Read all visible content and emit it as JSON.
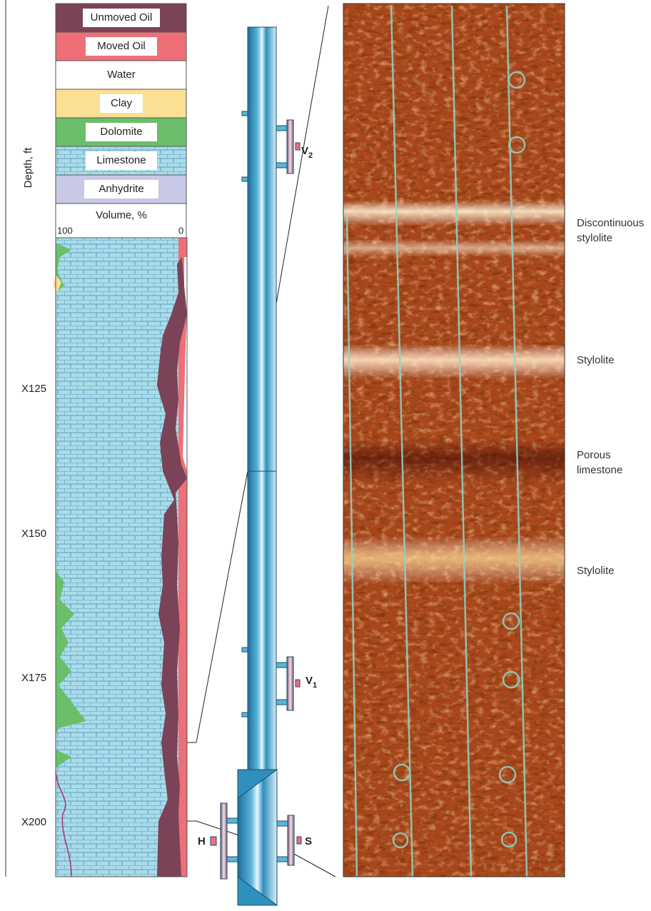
{
  "log": {
    "legend": [
      "Unmoved Oil",
      "Moved Oil",
      "Water",
      "Clay",
      "Dolomite",
      "Limestone",
      "Anhydrite"
    ],
    "volume_label": "Volume, %",
    "volume_left": "100",
    "volume_right": "0",
    "depth_label": "Depth, ft",
    "depths": [
      "X125",
      "X150",
      "X175",
      "X200"
    ]
  },
  "tool": {
    "labels": [
      {
        "letter": "V",
        "sub": "2"
      },
      {
        "letter": "V",
        "sub": "1"
      },
      {
        "letter": "H",
        "sub": ""
      },
      {
        "letter": "S",
        "sub": ""
      }
    ]
  },
  "image": {
    "annotations": [
      "Discontinuous stylolite",
      "Stylolite",
      "Porous limestone",
      "Stylolite"
    ]
  }
}
